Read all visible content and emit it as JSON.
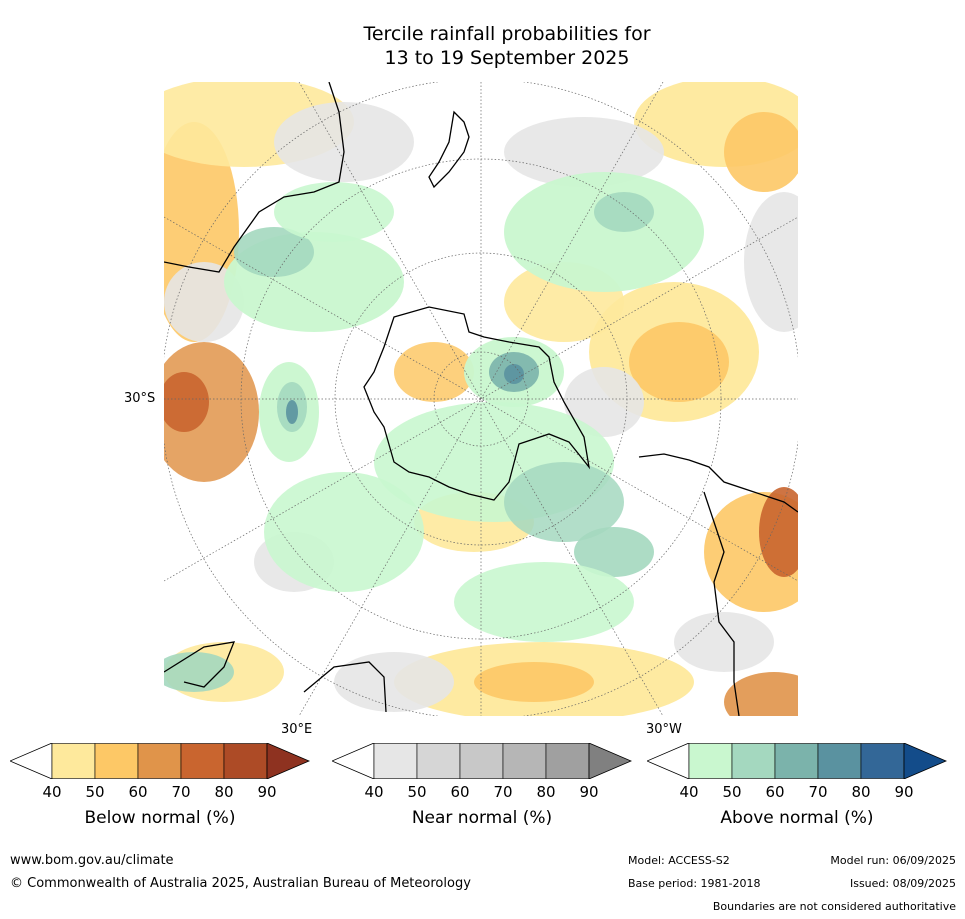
{
  "title_line1": "Tercile rainfall probabilities for",
  "title_line2": "13 to 19 September 2025",
  "labels": {
    "lat_30s": "30°S",
    "lon_30e": "30°E",
    "lon_30w": "30°W"
  },
  "colorbars": [
    {
      "title": "Below normal (%)",
      "ticks": [
        "40",
        "50",
        "60",
        "70",
        "80",
        "90"
      ],
      "colors": [
        "#ffffff",
        "#fee99c",
        "#fdc866",
        "#e0944a",
        "#c9652f",
        "#ad4b26",
        "#8e3220"
      ]
    },
    {
      "title": "Near normal (%)",
      "ticks": [
        "40",
        "50",
        "60",
        "70",
        "80",
        "90"
      ],
      "colors": [
        "#ffffff",
        "#e6e6e6",
        "#d6d6d6",
        "#c8c8c8",
        "#b6b6b6",
        "#a0a0a0",
        "#808080"
      ]
    },
    {
      "title": "Above normal (%)",
      "ticks": [
        "40",
        "50",
        "60",
        "70",
        "80",
        "90"
      ],
      "colors": [
        "#ffffff",
        "#c9f7cf",
        "#a4d8bf",
        "#7bb3ab",
        "#5a92a0",
        "#336797",
        "#134c8a"
      ]
    }
  ],
  "footer": {
    "website": "www.bom.gov.au/climate",
    "copyright": "© Commonwealth of Australia 2025, Australian Bureau of Meteorology",
    "model": "Model: ACCESS-S2",
    "model_run": "Model run: 06/09/2025",
    "base_period": "Base period: 1981-2018",
    "issued": "Issued: 08/09/2025",
    "disclaimer": "Boundaries are not considered authoritative"
  }
}
